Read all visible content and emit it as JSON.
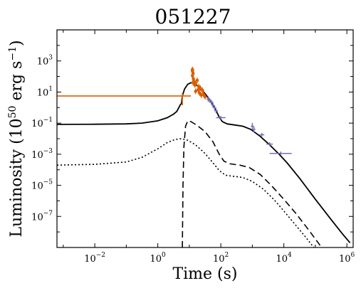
{
  "chart_data": {
    "type": "line",
    "title": "051227",
    "xlabel": "Time (s)",
    "ylabel": {
      "text": "Luminosity (10",
      "exp": "50",
      "unit": " erg s",
      "unit_exp": "−1",
      "close": ")"
    },
    "xscale": "log",
    "yscale": "log",
    "xlim_log10": [
      -3.2,
      6.2
    ],
    "ylim_log10": [
      -9.0,
      5.0
    ],
    "x_ticks": [
      {
        "base": "10",
        "exp": "−2",
        "log10": -2
      },
      {
        "base": "10",
        "exp": "0",
        "log10": 0
      },
      {
        "base": "10",
        "exp": "2",
        "log10": 2
      },
      {
        "base": "10",
        "exp": "4",
        "log10": 4
      },
      {
        "base": "10",
        "exp": "6",
        "log10": 6
      }
    ],
    "y_ticks": [
      {
        "base": "10",
        "exp": "−7",
        "log10": -7
      },
      {
        "base": "10",
        "exp": "−5",
        "log10": -5
      },
      {
        "base": "10",
        "exp": "−3",
        "log10": -3
      },
      {
        "base": "10",
        "exp": "−1",
        "log10": -1
      },
      {
        "base": "10",
        "exp": "1",
        "log10": 1
      },
      {
        "base": "10",
        "exp": "3",
        "log10": 3
      }
    ],
    "colors": {
      "orange": "#d95f02",
      "purple": "#7570b3",
      "model": "#000000"
    },
    "series": [
      {
        "style": "solid",
        "points": [
          [
            -3.2,
            -1.08
          ],
          [
            -2,
            -1.07
          ],
          [
            -1,
            -1.05
          ],
          [
            -0.5,
            -1.0
          ],
          [
            0,
            -0.85
          ],
          [
            0.3,
            -0.65
          ],
          [
            0.5,
            -0.42
          ],
          [
            0.6,
            -0.25
          ],
          [
            0.72,
            0.2
          ],
          [
            0.75,
            0.25
          ],
          [
            0.78,
            0.75
          ],
          [
            0.85,
            1.2
          ],
          [
            0.95,
            1.5
          ],
          [
            1.05,
            1.6
          ],
          [
            1.15,
            1.55
          ],
          [
            1.3,
            1.35
          ],
          [
            1.5,
            0.9
          ],
          [
            1.7,
            0.35
          ],
          [
            1.85,
            -0.2
          ],
          [
            1.95,
            -0.62
          ],
          [
            2.05,
            -0.9
          ],
          [
            2.2,
            -1.05
          ],
          [
            2.45,
            -1.12
          ],
          [
            2.7,
            -1.2
          ],
          [
            2.95,
            -1.4
          ],
          [
            3.25,
            -1.85
          ],
          [
            3.55,
            -2.4
          ],
          [
            3.85,
            -3.0
          ],
          [
            4.1,
            -3.55
          ],
          [
            4.5,
            -4.55
          ],
          [
            5.0,
            -5.9
          ],
          [
            5.5,
            -7.2
          ],
          [
            5.85,
            -8.1
          ],
          [
            6.1,
            -8.7
          ]
        ]
      },
      {
        "style": "dashed",
        "points": [
          [
            0.78,
            -9.0
          ],
          [
            0.8,
            -5.0
          ],
          [
            0.83,
            -2.5
          ],
          [
            0.88,
            -1.2
          ],
          [
            0.95,
            -0.85
          ],
          [
            1.05,
            -0.9
          ],
          [
            1.25,
            -1.15
          ],
          [
            1.5,
            -1.55
          ],
          [
            1.75,
            -2.2
          ],
          [
            1.95,
            -3.0
          ],
          [
            2.1,
            -3.45
          ],
          [
            2.3,
            -3.62
          ],
          [
            2.6,
            -3.7
          ],
          [
            2.9,
            -3.85
          ],
          [
            3.25,
            -4.3
          ],
          [
            3.6,
            -5.0
          ],
          [
            4.0,
            -5.9
          ],
          [
            4.4,
            -6.85
          ],
          [
            4.8,
            -7.9
          ],
          [
            5.2,
            -9.0
          ]
        ]
      },
      {
        "style": "dotted",
        "points": [
          [
            -3.2,
            -3.7
          ],
          [
            -2,
            -3.65
          ],
          [
            -1,
            -3.5
          ],
          [
            -0.5,
            -3.2
          ],
          [
            0,
            -2.65
          ],
          [
            0.3,
            -2.25
          ],
          [
            0.55,
            -2.05
          ],
          [
            0.75,
            -2.0
          ],
          [
            0.95,
            -2.1
          ],
          [
            1.2,
            -2.4
          ],
          [
            1.5,
            -2.95
          ],
          [
            1.75,
            -3.55
          ],
          [
            1.95,
            -4.05
          ],
          [
            2.15,
            -4.35
          ],
          [
            2.4,
            -4.42
          ],
          [
            2.7,
            -4.5
          ],
          [
            3.0,
            -4.75
          ],
          [
            3.35,
            -5.25
          ],
          [
            3.7,
            -5.95
          ],
          [
            4.0,
            -6.65
          ],
          [
            4.35,
            -7.5
          ],
          [
            4.7,
            -8.35
          ],
          [
            4.95,
            -9.0
          ]
        ]
      }
    ],
    "orange_hline": {
      "x": [
        -3.2,
        1.05
      ],
      "y": 0.75
    },
    "orange_errors": [
      {
        "x": 0.78,
        "y": [
          0.15,
          0.95
        ]
      }
    ],
    "orange_points": [
      [
        1.1,
        2.45
      ],
      [
        1.1,
        2.35
      ],
      [
        1.12,
        2.2
      ],
      [
        1.1,
        2.05
      ],
      [
        1.13,
        1.85
      ],
      [
        1.14,
        1.7
      ],
      [
        1.2,
        1.55
      ],
      [
        1.12,
        1.6
      ],
      [
        1.18,
        1.45
      ],
      [
        1.25,
        1.75
      ],
      [
        1.3,
        1.35
      ],
      [
        1.28,
        1.15
      ],
      [
        1.35,
        1.25
      ],
      [
        1.32,
        0.95
      ],
      [
        1.42,
        1.1
      ],
      [
        1.38,
        0.8
      ],
      [
        1.45,
        0.85
      ],
      [
        1.2,
        1.05
      ],
      [
        1.5,
        0.7
      ]
    ],
    "purple_points": [
      {
        "x": 1.6,
        "y": 0.55,
        "xerr": 0.06,
        "yerr": 0.18
      },
      {
        "x": 1.65,
        "y": 0.45,
        "xerr": 0.06,
        "yerr": 0.15
      },
      {
        "x": 1.7,
        "y": 0.35,
        "xerr": 0.06,
        "yerr": 0.15
      },
      {
        "x": 1.75,
        "y": 0.15,
        "xerr": 0.05,
        "yerr": 0.15
      },
      {
        "x": 1.8,
        "y": 0.0,
        "xerr": 0.05,
        "yerr": 0.15
      },
      {
        "x": 1.85,
        "y": -0.2,
        "xerr": 0.06,
        "yerr": 0.15
      },
      {
        "x": 2.0,
        "y": -0.65,
        "xerr": 0.15,
        "yerr": 0.12
      },
      {
        "x": 3.0,
        "y": -1.2,
        "xerr": 0.05,
        "yerr": 0.22
      },
      {
        "x": 3.05,
        "y": -1.4,
        "xerr": 0.05,
        "yerr": 0.18
      },
      {
        "x": 3.3,
        "y": -1.75,
        "xerr": 0.08,
        "yerr": 0.12
      },
      {
        "x": 3.55,
        "y": -2.35,
        "xerr": 0.1,
        "yerr": 0.12
      },
      {
        "x": 3.9,
        "y": -2.95,
        "xerr": 0.35,
        "yerr": 0.12
      }
    ]
  }
}
